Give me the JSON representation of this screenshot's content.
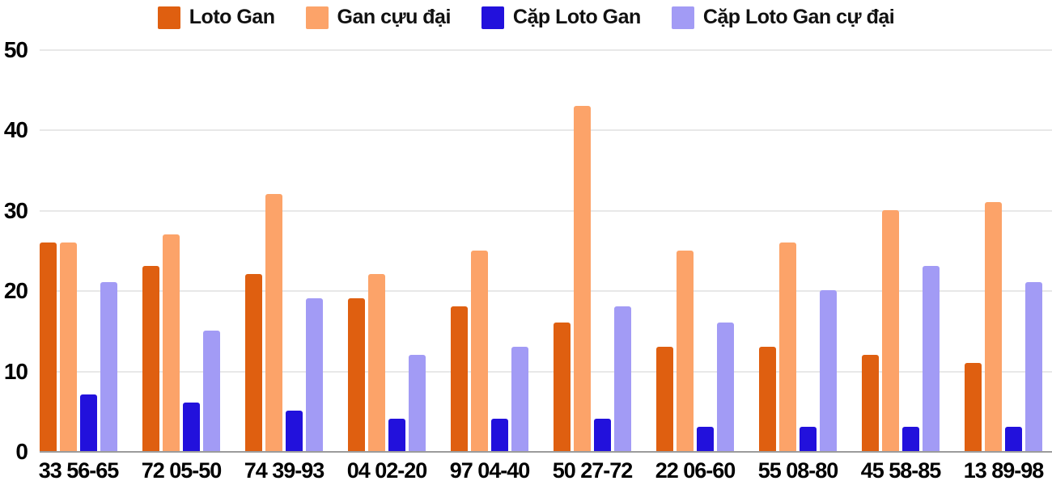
{
  "chart_data": {
    "type": "bar",
    "title": "",
    "xlabel": "",
    "ylabel": "",
    "categories": [
      "33 56-65",
      "72 05-50",
      "74 39-93",
      "04 02-20",
      "97 04-40",
      "50 27-72",
      "22 06-60",
      "55 08-80",
      "45 58-85",
      "13 89-98"
    ],
    "series": [
      {
        "name": "Loto Gan",
        "color": "#df5f10",
        "values": [
          26,
          23,
          22,
          19,
          18,
          16,
          13,
          13,
          12,
          11
        ]
      },
      {
        "name": "Gan cựu đại",
        "color": "#fca369",
        "values": [
          26,
          27,
          32,
          22,
          25,
          43,
          25,
          26,
          30,
          31
        ]
      },
      {
        "name": "Cặp Loto Gan",
        "color": "#2211dc",
        "values": [
          7,
          6,
          5,
          4,
          4,
          4,
          3,
          3,
          3,
          3
        ]
      },
      {
        "name": "Cặp Loto Gan cự đại",
        "color": "#a29bf5",
        "values": [
          21,
          15,
          19,
          12,
          13,
          18,
          16,
          20,
          23,
          21
        ]
      }
    ],
    "ylim": [
      0,
      50
    ],
    "yticks": [
      0,
      10,
      20,
      30,
      40,
      50
    ],
    "grid": true,
    "legend_position": "top"
  },
  "colors": {
    "background": "#ffffff",
    "gridline": "#e8e8e8",
    "baseline": "#9b9b9b",
    "text": "#000000"
  }
}
